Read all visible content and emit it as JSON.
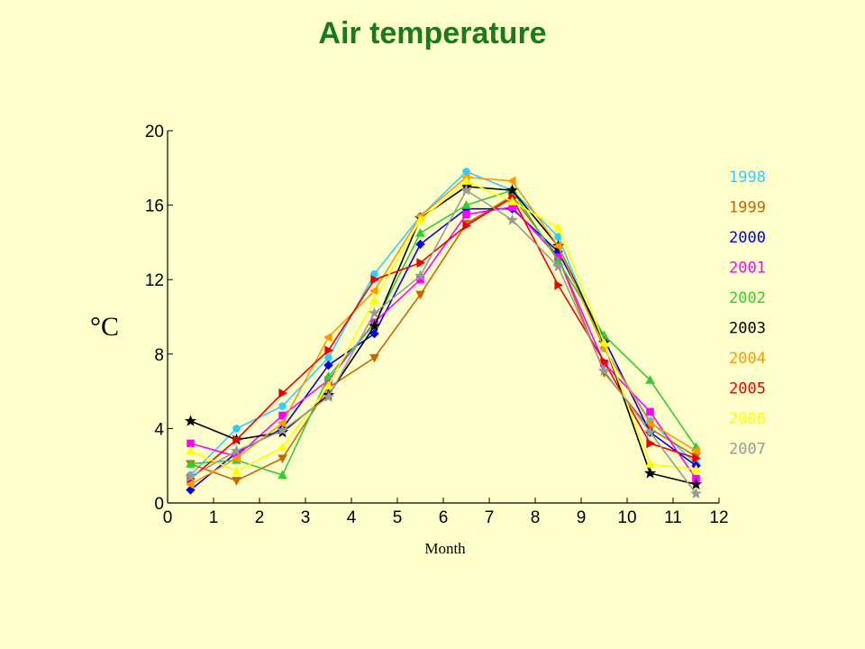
{
  "chart_data": {
    "type": "line",
    "title": "Air temperature",
    "title_color": "#1a7a1a",
    "xlabel": "Month",
    "ylabel": "°C",
    "xlim": [
      0,
      12
    ],
    "ylim": [
      0,
      20
    ],
    "xticks": [
      "0",
      "1",
      "2",
      "3",
      "4",
      "5",
      "6",
      "7",
      "8",
      "9",
      "10",
      "11",
      "12"
    ],
    "yticks": [
      "0",
      "4",
      "8",
      "12",
      "16",
      "20"
    ],
    "grid": false,
    "legend_position": "right",
    "x": [
      0.5,
      1.5,
      2.5,
      3.5,
      4.5,
      5.5,
      6.5,
      7.5,
      8.5,
      9.5,
      10.5,
      11.5
    ],
    "series": [
      {
        "name": "1998",
        "color": "#33ccff",
        "marker": "circle",
        "values": [
          1.5,
          4.0,
          5.2,
          7.8,
          12.3,
          15.4,
          17.8,
          16.8,
          14.3,
          8.3,
          4.4,
          2.1
        ]
      },
      {
        "name": "1999",
        "color": "#cc6600",
        "marker": "triangle-down",
        "values": [
          2.1,
          1.2,
          2.4,
          6.2,
          7.8,
          11.2,
          15.0,
          16.5,
          13.2,
          7.0,
          4.0,
          2.5
        ]
      },
      {
        "name": "2000",
        "color": "#0000ee",
        "marker": "diamond",
        "values": [
          0.7,
          2.7,
          4.0,
          7.4,
          9.1,
          13.9,
          15.8,
          15.8,
          13.5,
          8.8,
          3.8,
          2.0
        ]
      },
      {
        "name": "2001",
        "color": "#ff00ff",
        "marker": "square",
        "values": [
          3.2,
          2.5,
          4.7,
          6.6,
          9.7,
          12.0,
          15.5,
          15.9,
          13.2,
          7.5,
          4.9,
          1.3
        ]
      },
      {
        "name": "2002",
        "color": "#33cc33",
        "marker": "triangle-up",
        "values": [
          2.1,
          2.3,
          1.5,
          6.8,
          9.6,
          14.5,
          16.0,
          16.8,
          13.0,
          9.0,
          6.6,
          3.0
        ]
      },
      {
        "name": "2003",
        "color": "#000000",
        "marker": "star",
        "values": [
          4.4,
          3.4,
          3.8,
          5.8,
          9.5,
          15.3,
          17.0,
          16.8,
          13.8,
          8.6,
          1.6,
          1.0
        ]
      },
      {
        "name": "2004",
        "color": "#ff9900",
        "marker": "triangle-left",
        "values": [
          1.0,
          2.4,
          4.3,
          8.9,
          11.4,
          15.4,
          17.5,
          17.3,
          13.8,
          8.3,
          4.3,
          2.8
        ]
      },
      {
        "name": "2005",
        "color": "#ee0000",
        "marker": "triangle-right",
        "values": [
          1.3,
          3.4,
          5.9,
          8.2,
          12.0,
          12.9,
          14.9,
          16.4,
          11.7,
          7.6,
          3.2,
          2.4
        ]
      },
      {
        "name": "2006",
        "color": "#ffff00",
        "marker": "triangle-up",
        "values": [
          2.8,
          1.7,
          3.0,
          6.3,
          10.9,
          15.2,
          17.3,
          16.2,
          14.8,
          8.6,
          2.1,
          1.8
        ]
      },
      {
        "name": "2007",
        "color": "#999999",
        "marker": "star",
        "values": [
          1.4,
          2.8,
          3.9,
          5.7,
          10.2,
          12.2,
          16.8,
          15.2,
          12.7,
          7.1,
          3.8,
          0.5
        ]
      }
    ]
  }
}
